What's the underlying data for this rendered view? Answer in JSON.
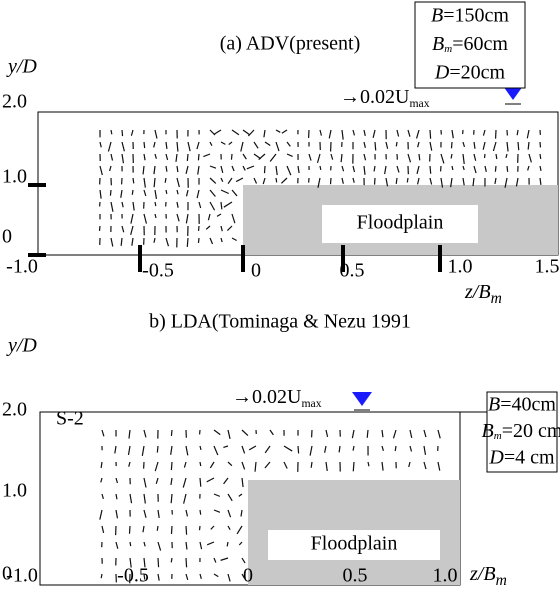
{
  "panels": [
    {
      "title": "(a) ADV(present)",
      "y_axis_label": "y/D",
      "x_axis_label": {
        "text": "z/B",
        "subscript": "m"
      },
      "scale_arrow": {
        "text": "→0.02U",
        "subscript": "max"
      },
      "y_tick_labels": [
        "2.0",
        "1.0",
        "0"
      ],
      "x_tick_labels": [
        "-1.0",
        "-0.5",
        "0",
        "0.5",
        "1.0",
        "1.5"
      ],
      "region_label": "Floodplain",
      "parameters": [
        {
          "symbol": "B",
          "value": "=150cm"
        },
        {
          "symbol": "B",
          "subscript": "m",
          "value": "=60cm"
        },
        {
          "symbol": "D",
          "value": "=20cm"
        }
      ]
    },
    {
      "title": "b) LDA(Tominaga & Nezu 1991",
      "run_label": "S-2",
      "y_axis_label": "y/D",
      "x_axis_label": {
        "text": "z/B",
        "subscript": "m"
      },
      "scale_arrow": {
        "text": "→0.02U",
        "subscript": "max"
      },
      "y_tick_labels": [
        "2.0",
        "1.0",
        "0"
      ],
      "x_tick_labels": [
        "-1.0",
        "-0.5",
        "0",
        "0.5",
        "1.0"
      ],
      "region_label": "Floodplain",
      "parameters": [
        {
          "symbol": "B",
          "value": "=40cm"
        },
        {
          "symbol": "B",
          "subscript": "m",
          "value": "=20 cm"
        },
        {
          "symbol": "D",
          "value": "=4  cm"
        }
      ]
    }
  ]
}
